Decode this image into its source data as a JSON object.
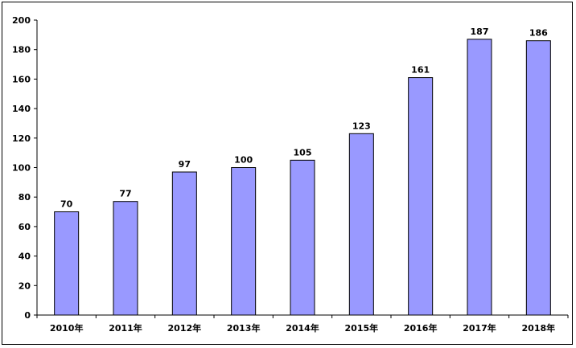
{
  "chart_data": {
    "type": "bar",
    "title": "",
    "xlabel": "",
    "ylabel": "",
    "categories": [
      "2010年",
      "2011年",
      "2012年",
      "2013年",
      "2014年",
      "2015年",
      "2016年",
      "2017年",
      "2018年"
    ],
    "values": [
      70,
      77,
      97,
      100,
      105,
      123,
      161,
      187,
      186
    ],
    "data_labels": [
      "70",
      "77",
      "97",
      "100",
      "105",
      "123",
      "161",
      "187",
      "186"
    ],
    "ylim": [
      0,
      200
    ],
    "yticks": [
      0,
      20,
      40,
      60,
      80,
      100,
      120,
      140,
      160,
      180,
      200
    ],
    "ytick_labels": [
      "0",
      "20",
      "40",
      "60",
      "80",
      "100",
      "120",
      "140",
      "160",
      "180",
      "200"
    ],
    "grid": false,
    "legend": "none",
    "colors": {
      "bar_fill": "#9999ff",
      "bar_stroke": "#000000",
      "axis": "#000000"
    }
  }
}
